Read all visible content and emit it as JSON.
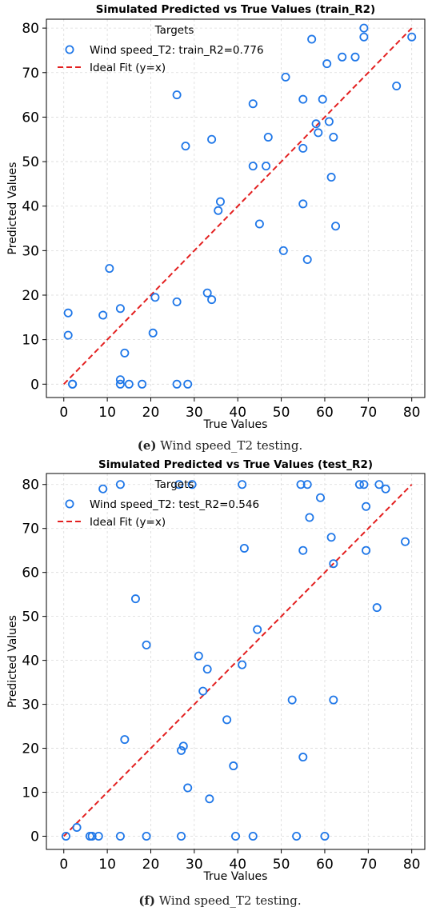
{
  "chart_data": [
    {
      "type": "scatter",
      "title": "Simulated Predicted vs True Values (train_R2)",
      "xlabel": "True Values",
      "ylabel": "Predicted Values",
      "xlim": [
        -4,
        83
      ],
      "ylim": [
        -3,
        82
      ],
      "xticks": [
        "0",
        "10",
        "20",
        "30",
        "40",
        "50",
        "60",
        "70",
        "80"
      ],
      "yticks": [
        "0",
        "10",
        "20",
        "30",
        "40",
        "50",
        "60",
        "70",
        "80"
      ],
      "grid": true,
      "legend": {
        "title": "Targets",
        "placement": "top-left",
        "entries": [
          "Wind speed_T2: train_R2=0.776",
          "Ideal Fit (y=x)"
        ]
      },
      "series": [
        {
          "name": "Wind speed_T2: train_R2=0.776",
          "color": "#1f77e8",
          "points": [
            [
              1,
              16
            ],
            [
              1,
              11
            ],
            [
              2,
              0
            ],
            [
              2,
              0
            ],
            [
              9,
              15.5
            ],
            [
              10.5,
              26
            ],
            [
              13,
              17
            ],
            [
              13,
              1
            ],
            [
              13,
              0
            ],
            [
              14,
              7
            ],
            [
              15,
              0
            ],
            [
              18,
              0
            ],
            [
              20.5,
              11.5
            ],
            [
              21,
              19.5
            ],
            [
              26,
              65
            ],
            [
              26,
              18.5
            ],
            [
              26,
              0
            ],
            [
              28,
              53.5
            ],
            [
              28.5,
              0
            ],
            [
              33,
              20.5
            ],
            [
              34,
              19
            ],
            [
              34,
              55
            ],
            [
              35.5,
              39
            ],
            [
              36,
              41
            ],
            [
              43.5,
              63
            ],
            [
              43.5,
              49
            ],
            [
              45,
              36
            ],
            [
              46.5,
              49
            ],
            [
              47,
              55.5
            ],
            [
              50.5,
              30
            ],
            [
              51,
              69
            ],
            [
              55,
              64
            ],
            [
              55,
              53
            ],
            [
              55,
              40.5
            ],
            [
              56,
              28
            ],
            [
              57,
              77.5
            ],
            [
              58,
              58.5
            ],
            [
              58.5,
              56.5
            ],
            [
              59.5,
              64
            ],
            [
              60.5,
              72
            ],
            [
              61,
              59
            ],
            [
              61.5,
              46.5
            ],
            [
              62,
              55.5
            ],
            [
              62.5,
              35.5
            ],
            [
              64,
              73.5
            ],
            [
              67,
              73.5
            ],
            [
              69,
              80
            ],
            [
              69,
              78
            ],
            [
              76.5,
              67
            ],
            [
              80,
              78
            ]
          ]
        },
        {
          "name": "Ideal Fit (y=x)",
          "color": "#e32020",
          "line": [
            [
              0,
              0
            ],
            [
              80,
              80
            ]
          ]
        }
      ]
    },
    {
      "type": "scatter",
      "title": "Simulated Predicted vs True Values (test_R2)",
      "xlabel": "True Values",
      "ylabel": "Predicted Values",
      "xlim": [
        -4,
        83
      ],
      "ylim": [
        -3,
        82.5
      ],
      "xticks": [
        "0",
        "10",
        "20",
        "30",
        "40",
        "50",
        "60",
        "70",
        "80"
      ],
      "yticks": [
        "0",
        "10",
        "20",
        "30",
        "40",
        "50",
        "60",
        "70",
        "80"
      ],
      "grid": true,
      "legend": {
        "title": "Targets",
        "placement": "top-left",
        "entries": [
          "Wind speed_T2: test_R2=0.546",
          "Ideal Fit (y=x)"
        ]
      },
      "series": [
        {
          "name": "Wind speed_T2: test_R2=0.546",
          "color": "#1f77e8",
          "points": [
            [
              0.5,
              0
            ],
            [
              3,
              2
            ],
            [
              6,
              0
            ],
            [
              6.5,
              0
            ],
            [
              8,
              0
            ],
            [
              9,
              79
            ],
            [
              13,
              80
            ],
            [
              13,
              0
            ],
            [
              14,
              22
            ],
            [
              16.5,
              54
            ],
            [
              19,
              43.5
            ],
            [
              19,
              0
            ],
            [
              26.5,
              80
            ],
            [
              27,
              19.5
            ],
            [
              27.5,
              20.5
            ],
            [
              27,
              0
            ],
            [
              28.5,
              11
            ],
            [
              29.5,
              80
            ],
            [
              31,
              41
            ],
            [
              32,
              33
            ],
            [
              33,
              38
            ],
            [
              33.5,
              8.5
            ],
            [
              37.5,
              26.5
            ],
            [
              39,
              16
            ],
            [
              39.5,
              0
            ],
            [
              41,
              80
            ],
            [
              41,
              39
            ],
            [
              41.5,
              65.5
            ],
            [
              43.5,
              0
            ],
            [
              44.5,
              47
            ],
            [
              52.5,
              31
            ],
            [
              53.5,
              0
            ],
            [
              54.5,
              80
            ],
            [
              55,
              65
            ],
            [
              55,
              18
            ],
            [
              56,
              80
            ],
            [
              56.5,
              72.5
            ],
            [
              59,
              77
            ],
            [
              60,
              0
            ],
            [
              61.5,
              68
            ],
            [
              62,
              62
            ],
            [
              62,
              31
            ],
            [
              68,
              80
            ],
            [
              69,
              80
            ],
            [
              69.5,
              75
            ],
            [
              69.5,
              65
            ],
            [
              72,
              52
            ],
            [
              72.5,
              80
            ],
            [
              74,
              79
            ],
            [
              78.5,
              67
            ]
          ]
        },
        {
          "name": "Ideal Fit (y=x)",
          "color": "#e32020",
          "line": [
            [
              0,
              0
            ],
            [
              80,
              80
            ]
          ]
        }
      ]
    }
  ],
  "captions": [
    {
      "label": "(e)",
      "text": " Wind speed_T2 testing."
    },
    {
      "label": "(f)",
      "text": " Wind speed_T2 testing."
    }
  ]
}
